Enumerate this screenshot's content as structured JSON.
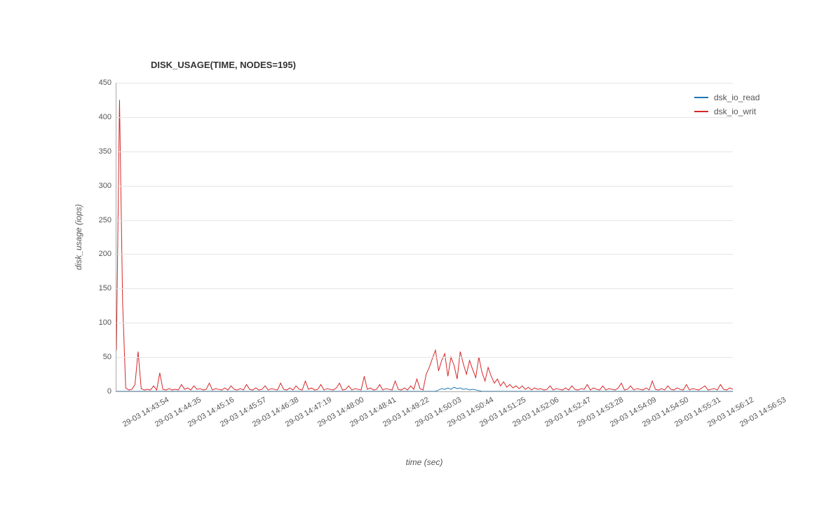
{
  "chart": {
    "type": "line",
    "title": "DISK_USAGE(TIME, NODES=195)",
    "title_fontsize": 13,
    "title_fontweight": "bold",
    "background_color": "#ffffff",
    "grid_color": "#e5e5e5",
    "axis_color": "#aaaaaa",
    "tick_fontsize": 11,
    "label_fontsize": 12,
    "y": {
      "label": "disk_usage (iops)",
      "min": 0,
      "max": 450,
      "tick_step": 50,
      "ticks": [
        0,
        50,
        100,
        150,
        200,
        250,
        300,
        350,
        400,
        450
      ]
    },
    "x": {
      "label": "time (sec)",
      "tick_rotation": -30,
      "ticks": [
        "29-03 14:43:54",
        "29-03 14:44:35",
        "29-03 14:45:16",
        "29-03 14:45:57",
        "29-03 14:46:38",
        "29-03 14:47:19",
        "29-03 14:48:00",
        "29-03 14:48:41",
        "29-03 14:49:22",
        "29-03 14:50:03",
        "29-03 14:50:44",
        "29-03 14:51:25",
        "29-03 14:52:06",
        "29-03 14:52:47",
        "29-03 14:53:28",
        "29-03 14:54:09",
        "29-03 14:54:50",
        "29-03 14:55:31",
        "29-03 14:56:12",
        "29-03 14:56:53"
      ]
    },
    "series": [
      {
        "name": "dsk_io_read",
        "color": "#1f77b4",
        "line_width": 1,
        "data": [
          0,
          0,
          0,
          0,
          0,
          0,
          0,
          0,
          0,
          0,
          0,
          0,
          0,
          0,
          0,
          0,
          0,
          0,
          0,
          0,
          0,
          0,
          0,
          0,
          0,
          0,
          0,
          0,
          0,
          0,
          0,
          0,
          0,
          0,
          0,
          0,
          0,
          0,
          0,
          0,
          0,
          0,
          0,
          0,
          0,
          0,
          0,
          0,
          0,
          0,
          0,
          0,
          0,
          0,
          0,
          0,
          0,
          0,
          0,
          0,
          0,
          0,
          0,
          0,
          0,
          0,
          0,
          0,
          0,
          0,
          0,
          0,
          0,
          0,
          0,
          0,
          0,
          0,
          0,
          0,
          0,
          0,
          0,
          0,
          0,
          0,
          0,
          0,
          0,
          0,
          0,
          0,
          0,
          0,
          0,
          0,
          0,
          0,
          0,
          0,
          0,
          0,
          0,
          0,
          2,
          4,
          3,
          5,
          3,
          6,
          4,
          5,
          3,
          4,
          2,
          3,
          2,
          1,
          0,
          0,
          0,
          0,
          0,
          0,
          0,
          0,
          0,
          0,
          0,
          0,
          0,
          0,
          0,
          0,
          0,
          0,
          0,
          0,
          0,
          0,
          0,
          0,
          0,
          0,
          0,
          0,
          0,
          0,
          0,
          0,
          0,
          0,
          0,
          0,
          0,
          0,
          0,
          0,
          0,
          0,
          0,
          0,
          0,
          0,
          0,
          0,
          0,
          0,
          0,
          0,
          0,
          0,
          0,
          0,
          0,
          0,
          0,
          0,
          0,
          0,
          0,
          0,
          0,
          0,
          0,
          0,
          0,
          0,
          0,
          0,
          0,
          0,
          0,
          0,
          0,
          0,
          0,
          0,
          0,
          0
        ]
      },
      {
        "name": "dsk_io_writ",
        "color": "#d62728",
        "line_width": 1,
        "data": [
          60,
          425,
          130,
          5,
          2,
          3,
          10,
          58,
          4,
          2,
          3,
          2,
          8,
          2,
          27,
          3,
          2,
          4,
          2,
          3,
          2,
          10,
          3,
          5,
          2,
          8,
          3,
          4,
          2,
          3,
          12,
          2,
          4,
          3,
          2,
          5,
          2,
          8,
          3,
          2,
          4,
          2,
          10,
          3,
          2,
          5,
          2,
          3,
          8,
          2,
          4,
          3,
          2,
          12,
          3,
          2,
          5,
          2,
          8,
          3,
          2,
          15,
          3,
          5,
          2,
          3,
          10,
          2,
          4,
          3,
          2,
          5,
          12,
          2,
          3,
          8,
          2,
          4,
          3,
          2,
          22,
          3,
          5,
          2,
          3,
          10,
          2,
          4,
          3,
          2,
          15,
          3,
          2,
          5,
          2,
          8,
          3,
          18,
          4,
          2,
          25,
          35,
          48,
          60,
          30,
          45,
          55,
          22,
          50,
          38,
          18,
          58,
          40,
          25,
          45,
          32,
          20,
          50,
          28,
          15,
          35,
          22,
          12,
          18,
          8,
          14,
          6,
          10,
          5,
          8,
          4,
          8,
          3,
          6,
          2,
          5,
          3,
          4,
          2,
          3,
          8,
          2,
          4,
          3,
          2,
          5,
          2,
          8,
          3,
          2,
          4,
          3,
          10,
          2,
          5,
          3,
          2,
          8,
          2,
          4,
          3,
          2,
          5,
          12,
          2,
          3,
          8,
          2,
          4,
          3,
          2,
          5,
          2,
          15,
          3,
          2,
          4,
          2,
          8,
          3,
          2,
          5,
          3,
          2,
          10,
          2,
          4,
          3,
          2,
          5,
          8,
          2,
          3,
          4,
          2,
          10,
          3,
          2,
          5,
          3
        ]
      }
    ],
    "legend": {
      "position": "right",
      "items": [
        {
          "label": "dsk_io_read",
          "color": "#1f77b4"
        },
        {
          "label": "dsk_io_writ",
          "color": "#d62728"
        }
      ]
    }
  }
}
